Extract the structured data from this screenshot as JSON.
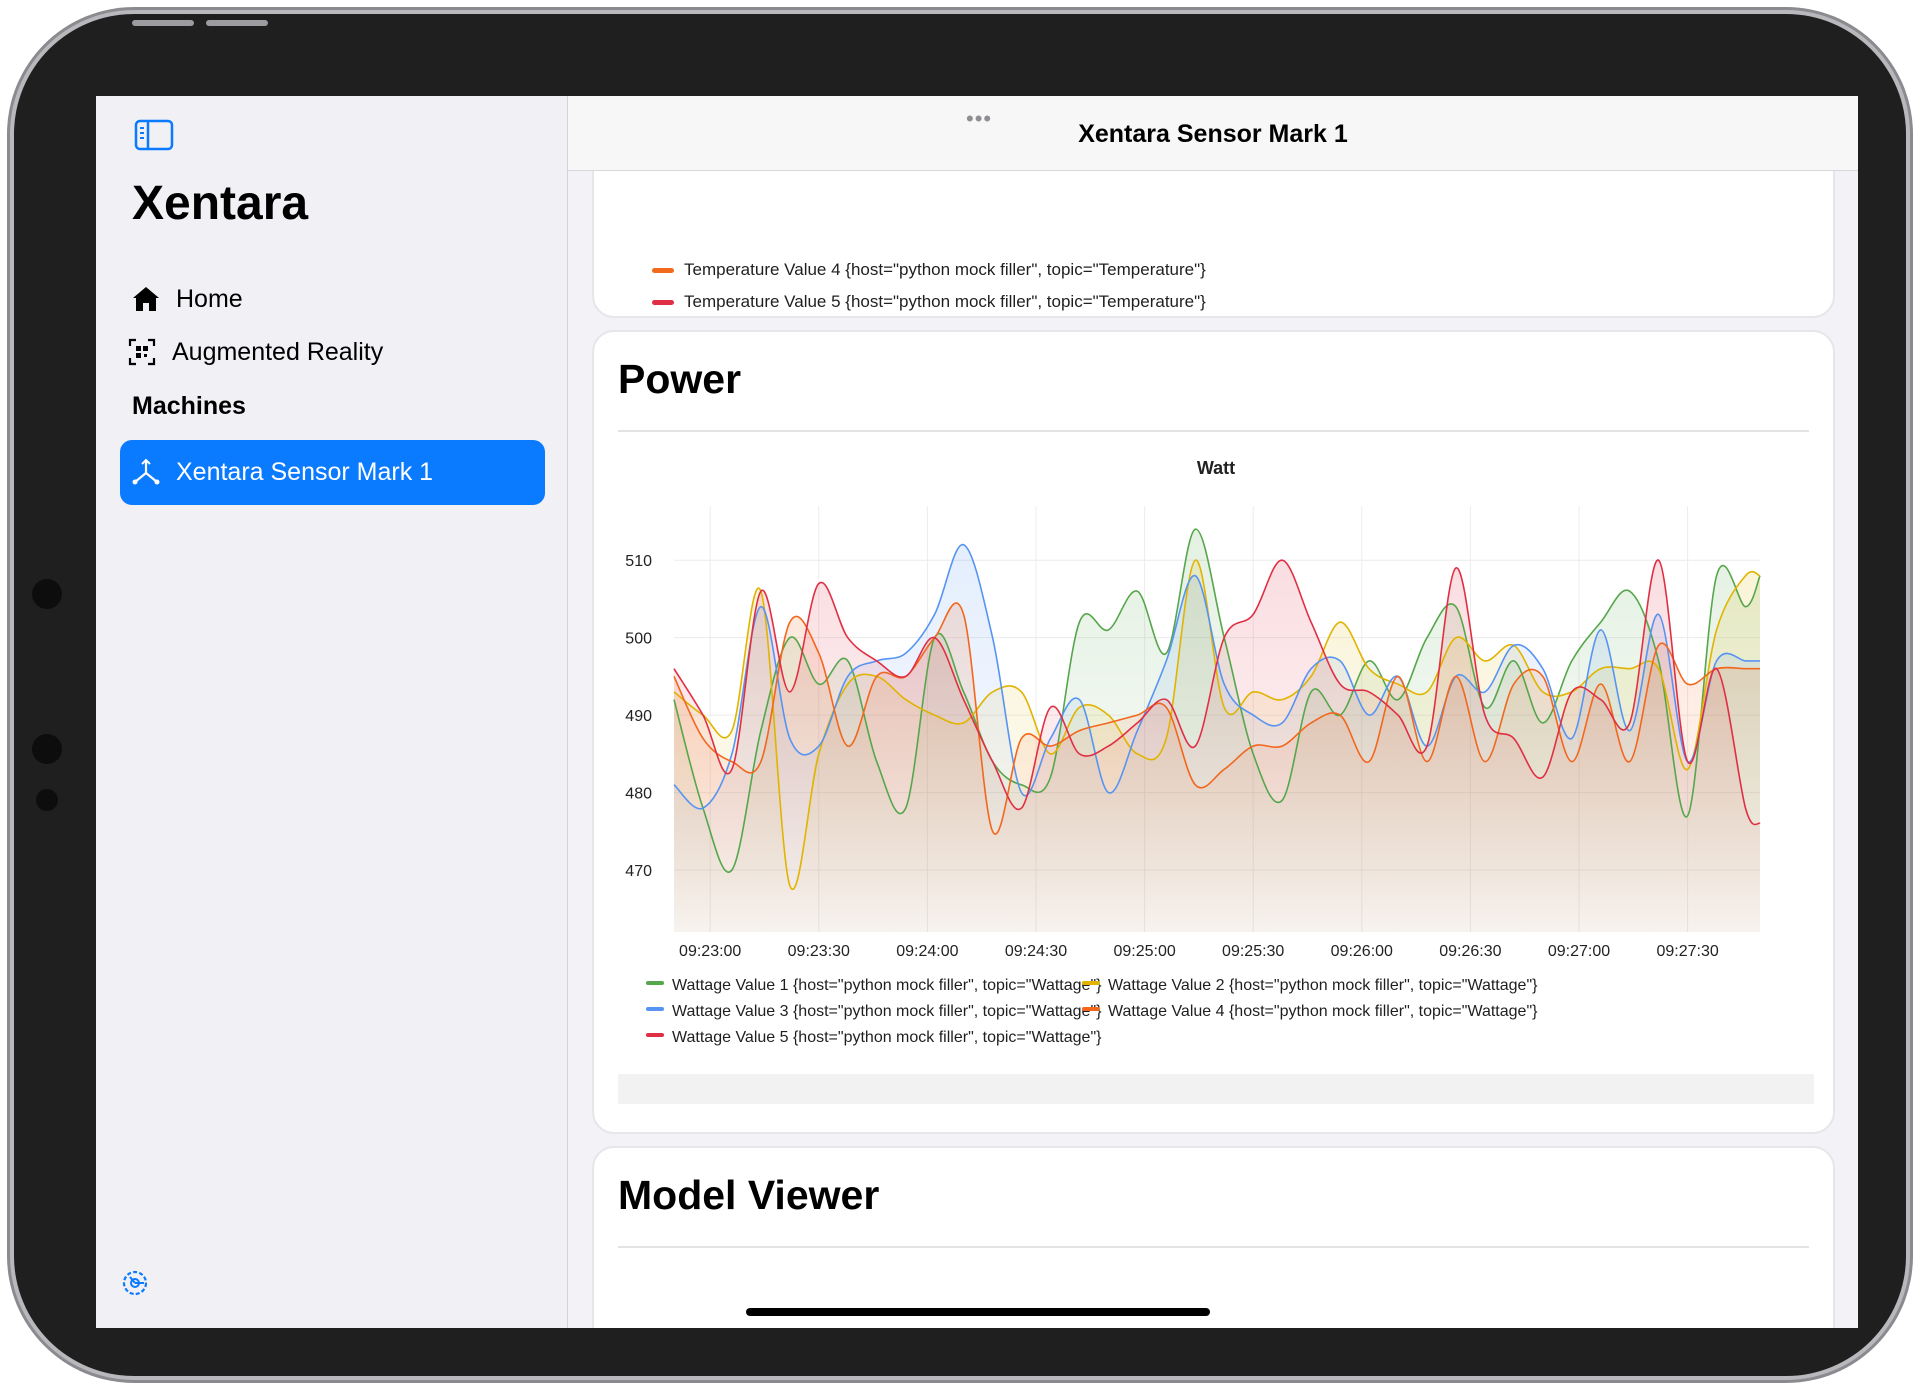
{
  "app": {
    "title": "Xentara",
    "nav": [
      {
        "label": "Home",
        "icon": "house-icon"
      },
      {
        "label": "Augmented Reality",
        "icon": "qr-scan-icon"
      }
    ],
    "machines_header": "Machines",
    "machines": [
      {
        "label": "Xentara Sensor Mark 1",
        "icon": "axes-3d-icon",
        "selected": true
      }
    ]
  },
  "navbar": {
    "title": "Xentara Sensor Mark 1",
    "more_dots": "•••"
  },
  "temperature_card": {
    "legend": [
      {
        "label": "Temperature Value 4 {host=\"python mock filler\", topic=\"Temperature\"}",
        "color": "#f26b1d"
      },
      {
        "label": "Temperature Value 5 {host=\"python mock filler\", topic=\"Temperature\"}",
        "color": "#e02f44"
      }
    ]
  },
  "power_card": {
    "title": "Power"
  },
  "model_card": {
    "title": "Model Viewer"
  },
  "colors": {
    "accent": "#0a7aff",
    "sidebar_bg": "#f0f0f5"
  },
  "chart_data": {
    "type": "area",
    "title": "Watt",
    "xlabel": "",
    "ylabel": "",
    "ylim": [
      462,
      517
    ],
    "y_ticks": [
      470,
      480,
      490,
      500,
      510
    ],
    "x_range": [
      "09:22:50",
      "09:27:50"
    ],
    "x_ticks": [
      "09:23:00",
      "09:23:30",
      "09:24:00",
      "09:24:30",
      "09:25:00",
      "09:25:30",
      "09:26:00",
      "09:26:30",
      "09:27:00",
      "09:27:30"
    ],
    "grid": true,
    "legend_position": "bottom",
    "x": [
      "09:22:50",
      "09:22:58",
      "09:23:06",
      "09:23:14",
      "09:23:22",
      "09:23:30",
      "09:23:38",
      "09:23:46",
      "09:23:54",
      "09:24:02",
      "09:24:10",
      "09:24:18",
      "09:24:26",
      "09:24:34",
      "09:24:42",
      "09:24:50",
      "09:24:58",
      "09:25:06",
      "09:25:14",
      "09:25:22",
      "09:25:30",
      "09:25:38",
      "09:25:46",
      "09:25:54",
      "09:26:02",
      "09:26:10",
      "09:26:18",
      "09:26:26",
      "09:26:34",
      "09:26:42",
      "09:26:50",
      "09:26:58",
      "09:27:06",
      "09:27:14",
      "09:27:22",
      "09:27:30",
      "09:27:38",
      "09:27:46",
      "09:27:50"
    ],
    "series": [
      {
        "name": "Wattage Value 1 {host=\"python mock filler\", topic=\"Wattage\"}",
        "color": "#56a64b",
        "values": [
          492,
          478,
          470,
          488,
          500,
          494,
          497,
          484,
          478,
          500,
          493,
          484,
          481,
          482,
          502,
          501,
          506,
          498,
          514,
          500,
          485,
          479,
          493,
          490,
          497,
          492,
          500,
          504,
          491,
          497,
          489,
          497,
          502,
          506,
          497,
          477,
          508,
          504,
          508
        ]
      },
      {
        "name": "Wattage Value 2 {host=\"python mock filler\", topic=\"Wattage\"}",
        "color": "#e0b400",
        "values": [
          493,
          490,
          488,
          506,
          468,
          485,
          494,
          495,
          492,
          490,
          489,
          493,
          493,
          485,
          491,
          490,
          485,
          487,
          510,
          491,
          493,
          492,
          495,
          502,
          496,
          494,
          493,
          500,
          497,
          499,
          493,
          493,
          496,
          496,
          496,
          483,
          501,
          508,
          508
        ]
      },
      {
        "name": "Wattage Value 3 {host=\"python mock filler\", topic=\"Wattage\"}",
        "color": "#5794f2",
        "values": [
          481,
          478,
          485,
          504,
          487,
          486,
          495,
          497,
          498,
          503,
          512,
          500,
          480,
          487,
          492,
          480,
          488,
          497,
          508,
          494,
          490,
          489,
          496,
          497,
          490,
          495,
          486,
          495,
          493,
          499,
          496,
          487,
          501,
          488,
          503,
          484,
          497,
          497,
          497
        ]
      },
      {
        "name": "Wattage Value 4 {host=\"python mock filler\", topic=\"Wattage\"}",
        "color": "#f2671d",
        "values": [
          495,
          487,
          484,
          484,
          502,
          498,
          486,
          495,
          495,
          500,
          503,
          475,
          487,
          486,
          488,
          489,
          490,
          491,
          481,
          483,
          486,
          486,
          489,
          490,
          484,
          495,
          484,
          495,
          484,
          494,
          495,
          484,
          494,
          484,
          499,
          494,
          496,
          496,
          496
        ]
      },
      {
        "name": "Wattage Value 5 {host=\"python mock filler\", topic=\"Wattage\"}",
        "color": "#e02f44",
        "values": [
          496,
          490,
          483,
          506,
          493,
          507,
          500,
          497,
          495,
          500,
          492,
          484,
          478,
          491,
          485,
          486,
          489,
          492,
          486,
          500,
          503,
          510,
          502,
          494,
          493,
          490,
          486,
          509,
          490,
          487,
          482,
          493,
          492,
          489,
          510,
          484,
          496,
          478,
          476
        ]
      }
    ]
  }
}
